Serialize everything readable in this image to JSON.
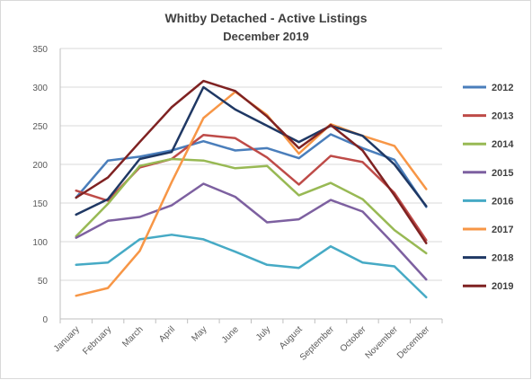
{
  "chart_data": {
    "type": "line",
    "title": "Whitby Detached - Active Listings",
    "subtitle": "December 2019",
    "xlabel": "",
    "ylabel": "",
    "categories": [
      "January",
      "February",
      "March",
      "April",
      "May",
      "June",
      "July",
      "August",
      "September",
      "October",
      "November",
      "December"
    ],
    "ylim": [
      0,
      350
    ],
    "yticks": [
      0,
      50,
      100,
      150,
      200,
      250,
      300,
      350
    ],
    "grid": true,
    "legend_position": "right",
    "series": [
      {
        "name": "2012",
        "color": "#4a7ebb",
        "values": [
          157,
          205,
          210,
          218,
          230,
          218,
          221,
          208,
          239,
          221,
          206,
          145
        ]
      },
      {
        "name": "2013",
        "color": "#be4b48",
        "values": [
          166,
          153,
          196,
          207,
          238,
          234,
          209,
          174,
          211,
          203,
          163,
          102
        ]
      },
      {
        "name": "2014",
        "color": "#98b954",
        "values": [
          107,
          149,
          198,
          207,
          205,
          195,
          198,
          160,
          176,
          155,
          115,
          85
        ]
      },
      {
        "name": "2015",
        "color": "#7d60a0",
        "values": [
          105,
          127,
          132,
          147,
          175,
          158,
          125,
          129,
          154,
          139,
          96,
          51
        ]
      },
      {
        "name": "2016",
        "color": "#46aac5",
        "values": [
          70,
          73,
          103,
          109,
          103,
          87,
          70,
          66,
          94,
          73,
          68,
          28
        ]
      },
      {
        "name": "2017",
        "color": "#f79646",
        "values": [
          30,
          40,
          88,
          177,
          260,
          294,
          264,
          214,
          252,
          237,
          224,
          168
        ]
      },
      {
        "name": "2018",
        "color": "#1f3864",
        "values": [
          135,
          155,
          207,
          216,
          300,
          271,
          250,
          229,
          250,
          237,
          200,
          146
        ]
      },
      {
        "name": "2019",
        "color": "#7f2222",
        "values": [
          157,
          183,
          229,
          274,
          308,
          295,
          262,
          221,
          251,
          218,
          160,
          98
        ]
      }
    ]
  }
}
